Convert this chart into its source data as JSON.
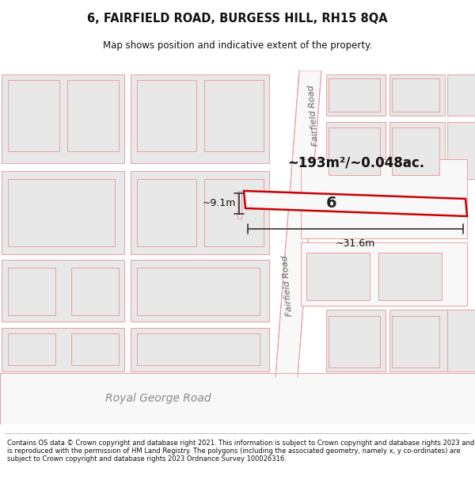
{
  "title": "6, FAIRFIELD ROAD, BURGESS HILL, RH15 8QA",
  "subtitle": "Map shows position and indicative extent of the property.",
  "footer": "Contains OS data © Crown copyright and database right 2021. This information is subject to Crown copyright and database rights 2023 and is reproduced with the permission of HM Land Registry. The polygons (including the associated geometry, namely x, y co-ordinates) are subject to Crown copyright and database rights 2023 Ordnance Survey 100026316.",
  "area_label": "~193m²/~0.048ac.",
  "property_number": "6",
  "dim_width": "~31.6m",
  "dim_height": "~9.1m",
  "road_label_top": "Fairfield Road",
  "road_label_bottom": "Fairfield Road",
  "road_label_horiz": "Royal George Road",
  "map_bg": "#ffffff",
  "outline_color": "#e8a0a0",
  "red_outline": "#cc0000",
  "block_fill": "#e8e8e8",
  "block_outline": "#d09090",
  "prop_fill": "#f8f8f8",
  "road_fill": "#f0f0f0"
}
